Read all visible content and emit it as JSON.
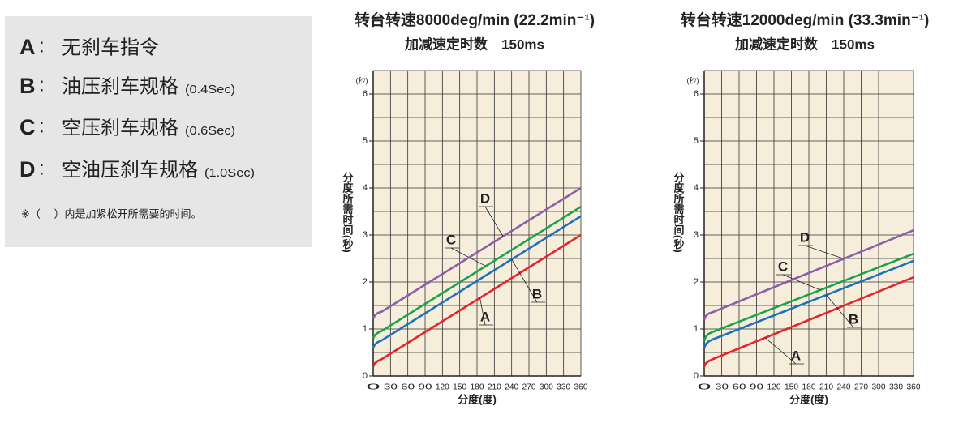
{
  "legend_box": {
    "items": [
      {
        "letter": "A",
        "text": "无刹车指令"
      },
      {
        "letter": "B",
        "text": "油压刹车规格",
        "note": "(0.4Sec)"
      },
      {
        "letter": "C",
        "text": "空压刹车规格",
        "note": "(0.6Sec)"
      },
      {
        "letter": "D",
        "text": "空油压刹车规格",
        "note": "(1.0Sec)"
      }
    ],
    "separator": ":",
    "footnote": "※（　 ）内是加紧松开所需要的时间。"
  },
  "chart_data": [
    {
      "type": "line",
      "title": "转台转速8000deg/min (22.2min⁻¹)",
      "subtitle": "加减速定时数　150ms",
      "x_label": "分度(度)",
      "y_label": "分度所需时间(秒)",
      "y_unit": "(秒)",
      "x": [
        0,
        3,
        8,
        15,
        360
      ],
      "series": [
        {
          "name": "A",
          "color": "#e3262b",
          "values": [
            0.2,
            0.27,
            0.32,
            0.36,
            3.0
          ]
        },
        {
          "name": "B",
          "color": "#1b72b8",
          "values": [
            0.6,
            0.67,
            0.72,
            0.76,
            3.4
          ]
        },
        {
          "name": "C",
          "color": "#1aa34a",
          "values": [
            0.8,
            0.87,
            0.92,
            0.96,
            3.6
          ]
        },
        {
          "name": "D",
          "color": "#8e5ea8",
          "values": [
            1.22,
            1.29,
            1.34,
            1.37,
            4.0
          ]
        }
      ],
      "xlim": [
        0,
        360
      ],
      "xticks": [
        0,
        30,
        60,
        90,
        120,
        150,
        180,
        210,
        240,
        270,
        300,
        330,
        360
      ],
      "ylim": [
        0,
        6.5
      ],
      "yticks": [
        0,
        1,
        2,
        3,
        4,
        5,
        6
      ],
      "ygrid": [
        0,
        0.5,
        1,
        1.5,
        2,
        2.5,
        3,
        3.5,
        4,
        4.5,
        5,
        5.5,
        6,
        6.5
      ],
      "grid": true,
      "background": "#f6eedb"
    },
    {
      "type": "line",
      "title": "转台转速12000deg/min (33.3min⁻¹)",
      "subtitle": "加减速定时数　150ms",
      "x_label": "分度(度)",
      "y_label": "分度所需时间(秒)",
      "y_unit": "(秒)",
      "x": [
        0,
        3,
        8,
        15,
        360
      ],
      "series": [
        {
          "name": "A",
          "color": "#e3262b",
          "values": [
            0.2,
            0.27,
            0.32,
            0.36,
            2.1
          ]
        },
        {
          "name": "B",
          "color": "#1b72b8",
          "values": [
            0.6,
            0.68,
            0.74,
            0.78,
            2.45
          ]
        },
        {
          "name": "C",
          "color": "#1aa34a",
          "values": [
            0.75,
            0.84,
            0.9,
            0.94,
            2.6
          ]
        },
        {
          "name": "D",
          "color": "#8e5ea8",
          "values": [
            1.2,
            1.28,
            1.33,
            1.36,
            3.1
          ]
        }
      ],
      "xlim": [
        0,
        360
      ],
      "xticks": [
        0,
        30,
        60,
        90,
        120,
        150,
        180,
        210,
        240,
        270,
        300,
        330,
        360
      ],
      "ylim": [
        0,
        6.5
      ],
      "yticks": [
        0,
        1,
        2,
        3,
        4,
        5,
        6
      ],
      "ygrid": [
        0,
        0.5,
        1,
        1.5,
        2,
        2.5,
        3,
        3.5,
        4,
        4.5,
        5,
        5.5,
        6,
        6.5
      ],
      "grid": true,
      "background": "#f6eedb"
    }
  ]
}
